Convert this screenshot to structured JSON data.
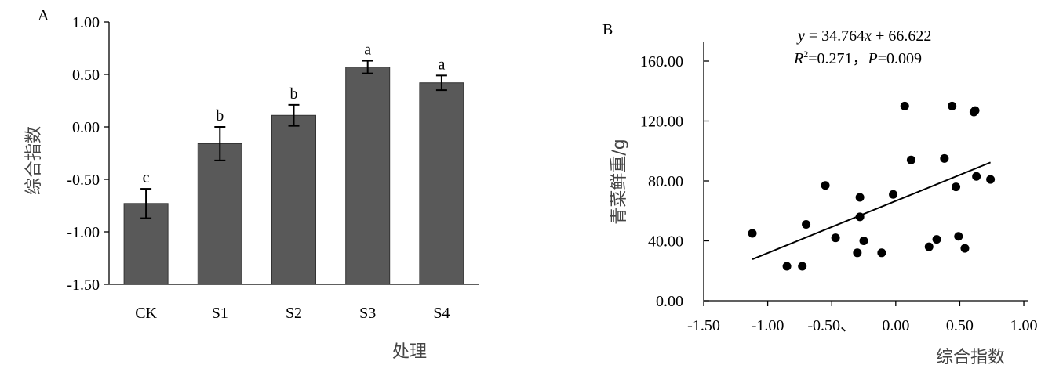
{
  "chart_data": [
    {
      "type": "bar",
      "panel_label": "A",
      "xlabel": "处理",
      "ylabel": "综合指数",
      "categories": [
        "CK",
        "S1",
        "S2",
        "S3",
        "S4"
      ],
      "values": [
        -0.73,
        -0.16,
        0.11,
        0.57,
        0.42
      ],
      "errors": [
        0.14,
        0.16,
        0.1,
        0.06,
        0.07
      ],
      "significance": [
        "c",
        "b",
        "b",
        "a",
        "a"
      ],
      "ylim": [
        -1.5,
        1.0
      ],
      "yticks": [
        "1.00",
        "0.50",
        "0.00",
        "-0.50",
        "-1.00",
        "-1.50"
      ],
      "bar_color": "#595959",
      "grid": false
    },
    {
      "type": "scatter",
      "panel_label": "B",
      "xlabel": "综合指数",
      "ylabel": "青菜鲜重/g",
      "xlim": [
        -1.5,
        1.0
      ],
      "ylim": [
        0,
        160
      ],
      "xticks": [
        "-1.50",
        "-1.00",
        "-0.50、",
        "0.00",
        "0.50",
        "1.00"
      ],
      "yticks": [
        "160.00",
        "120.00",
        "80.00",
        "40.00",
        "0.00"
      ],
      "equation_y": "y",
      "equation_rest": " = 34.764",
      "equation_x": "x",
      "equation_const": " + 66.622",
      "r2_label": "R",
      "r2_sup": "2",
      "r2_value": "=0.271，",
      "p_label": "P",
      "p_value": "=0.009",
      "points": [
        {
          "x": -1.12,
          "y": 45
        },
        {
          "x": -0.85,
          "y": 23
        },
        {
          "x": -0.73,
          "y": 23
        },
        {
          "x": -0.7,
          "y": 51
        },
        {
          "x": -0.55,
          "y": 77
        },
        {
          "x": -0.47,
          "y": 42
        },
        {
          "x": -0.3,
          "y": 32
        },
        {
          "x": -0.28,
          "y": 69
        },
        {
          "x": -0.28,
          "y": 56
        },
        {
          "x": -0.25,
          "y": 40
        },
        {
          "x": -0.11,
          "y": 32
        },
        {
          "x": -0.02,
          "y": 71
        },
        {
          "x": 0.07,
          "y": 130
        },
        {
          "x": 0.12,
          "y": 94
        },
        {
          "x": 0.26,
          "y": 36
        },
        {
          "x": 0.32,
          "y": 41
        },
        {
          "x": 0.38,
          "y": 95
        },
        {
          "x": 0.44,
          "y": 130
        },
        {
          "x": 0.47,
          "y": 76
        },
        {
          "x": 0.49,
          "y": 43
        },
        {
          "x": 0.54,
          "y": 35
        },
        {
          "x": 0.61,
          "y": 126
        },
        {
          "x": 0.62,
          "y": 127
        },
        {
          "x": 0.63,
          "y": 83
        },
        {
          "x": 0.74,
          "y": 81
        }
      ],
      "fit_line": {
        "x0": -1.12,
        "x1": 0.74,
        "slope": 34.764,
        "intercept": 66.622
      },
      "grid": false
    }
  ]
}
